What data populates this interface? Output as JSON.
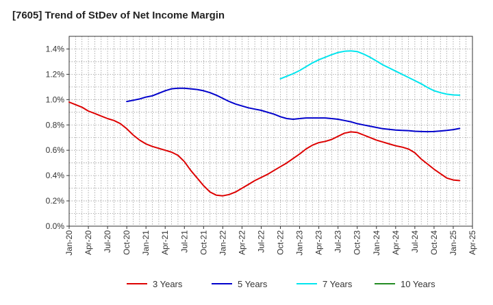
{
  "chart_data": {
    "type": "line",
    "title": "[7605]  Trend of StDev of Net Income Margin",
    "xlabel": "",
    "ylabel": "",
    "x_ticks": [
      "Jan-20",
      "Apr-20",
      "Jul-20",
      "Oct-20",
      "Jan-21",
      "Apr-21",
      "Jul-21",
      "Oct-21",
      "Jan-22",
      "Apr-22",
      "Jul-22",
      "Oct-22",
      "Jan-23",
      "Apr-23",
      "Jul-23",
      "Oct-23",
      "Jan-24",
      "Apr-24",
      "Jul-24",
      "Oct-24",
      "Jan-25",
      "Apr-25"
    ],
    "xlim": [
      "Jan-20",
      "Apr-25"
    ],
    "y_ticks": [
      "0.0%",
      "0.2%",
      "0.4%",
      "0.6%",
      "0.8%",
      "1.0%",
      "1.2%",
      "1.4%"
    ],
    "ylim": [
      0,
      1.5
    ],
    "y_unit": "%",
    "grid": true,
    "legend_position": "bottom",
    "series": [
      {
        "name": "3 Years",
        "color": "#dd0000",
        "points": [
          [
            "Jan-20",
            0.98
          ],
          [
            "Feb-20",
            0.96
          ],
          [
            "Mar-20",
            0.94
          ],
          [
            "Apr-20",
            0.91
          ],
          [
            "May-20",
            0.89
          ],
          [
            "Jun-20",
            0.87
          ],
          [
            "Jul-20",
            0.85
          ],
          [
            "Aug-20",
            0.835
          ],
          [
            "Sep-20",
            0.81
          ],
          [
            "Oct-20",
            0.77
          ],
          [
            "Nov-20",
            0.72
          ],
          [
            "Dec-20",
            0.68
          ],
          [
            "Jan-21",
            0.65
          ],
          [
            "Feb-21",
            0.63
          ],
          [
            "Mar-21",
            0.615
          ],
          [
            "Apr-21",
            0.6
          ],
          [
            "May-21",
            0.585
          ],
          [
            "Jun-21",
            0.56
          ],
          [
            "Jul-21",
            0.51
          ],
          [
            "Aug-21",
            0.44
          ],
          [
            "Sep-21",
            0.38
          ],
          [
            "Oct-21",
            0.32
          ],
          [
            "Nov-21",
            0.27
          ],
          [
            "Dec-21",
            0.245
          ],
          [
            "Jan-22",
            0.24
          ],
          [
            "Feb-22",
            0.25
          ],
          [
            "Mar-22",
            0.27
          ],
          [
            "Apr-22",
            0.3
          ],
          [
            "May-22",
            0.33
          ],
          [
            "Jun-22",
            0.36
          ],
          [
            "Jul-22",
            0.385
          ],
          [
            "Aug-22",
            0.41
          ],
          [
            "Sep-22",
            0.44
          ],
          [
            "Oct-22",
            0.47
          ],
          [
            "Nov-22",
            0.5
          ],
          [
            "Dec-22",
            0.535
          ],
          [
            "Jan-23",
            0.57
          ],
          [
            "Feb-23",
            0.61
          ],
          [
            "Mar-23",
            0.64
          ],
          [
            "Apr-23",
            0.66
          ],
          [
            "May-23",
            0.67
          ],
          [
            "Jun-23",
            0.685
          ],
          [
            "Jul-23",
            0.71
          ],
          [
            "Aug-23",
            0.735
          ],
          [
            "Sep-23",
            0.745
          ],
          [
            "Oct-23",
            0.74
          ],
          [
            "Nov-23",
            0.72
          ],
          [
            "Dec-23",
            0.7
          ],
          [
            "Jan-24",
            0.68
          ],
          [
            "Feb-24",
            0.665
          ],
          [
            "Mar-24",
            0.65
          ],
          [
            "Apr-24",
            0.635
          ],
          [
            "May-24",
            0.625
          ],
          [
            "Jun-24",
            0.61
          ],
          [
            "Jul-24",
            0.58
          ],
          [
            "Aug-24",
            0.53
          ],
          [
            "Sep-24",
            0.49
          ],
          [
            "Oct-24",
            0.45
          ],
          [
            "Nov-24",
            0.415
          ],
          [
            "Dec-24",
            0.38
          ],
          [
            "Jan-25",
            0.365
          ],
          [
            "Feb-25",
            0.36
          ]
        ]
      },
      {
        "name": "5 Years",
        "color": "#0000cc",
        "points": [
          [
            "Oct-20",
            0.985
          ],
          [
            "Nov-20",
            0.995
          ],
          [
            "Dec-20",
            1.005
          ],
          [
            "Jan-21",
            1.02
          ],
          [
            "Feb-21",
            1.03
          ],
          [
            "Mar-21",
            1.05
          ],
          [
            "Apr-21",
            1.07
          ],
          [
            "May-21",
            1.085
          ],
          [
            "Jun-21",
            1.09
          ],
          [
            "Jul-21",
            1.09
          ],
          [
            "Aug-21",
            1.085
          ],
          [
            "Sep-21",
            1.08
          ],
          [
            "Oct-21",
            1.07
          ],
          [
            "Nov-21",
            1.055
          ],
          [
            "Dec-21",
            1.035
          ],
          [
            "Jan-22",
            1.01
          ],
          [
            "Feb-22",
            0.985
          ],
          [
            "Mar-22",
            0.965
          ],
          [
            "Apr-22",
            0.95
          ],
          [
            "May-22",
            0.935
          ],
          [
            "Jun-22",
            0.925
          ],
          [
            "Jul-22",
            0.915
          ],
          [
            "Aug-22",
            0.9
          ],
          [
            "Sep-22",
            0.885
          ],
          [
            "Oct-22",
            0.865
          ],
          [
            "Nov-22",
            0.85
          ],
          [
            "Dec-22",
            0.845
          ],
          [
            "Jan-23",
            0.85
          ],
          [
            "Feb-23",
            0.855
          ],
          [
            "Mar-23",
            0.855
          ],
          [
            "Apr-23",
            0.855
          ],
          [
            "May-23",
            0.855
          ],
          [
            "Jun-23",
            0.85
          ],
          [
            "Jul-23",
            0.845
          ],
          [
            "Aug-23",
            0.835
          ],
          [
            "Sep-23",
            0.825
          ],
          [
            "Oct-23",
            0.81
          ],
          [
            "Nov-23",
            0.8
          ],
          [
            "Dec-23",
            0.79
          ],
          [
            "Jan-24",
            0.78
          ],
          [
            "Feb-24",
            0.77
          ],
          [
            "Mar-24",
            0.765
          ],
          [
            "Apr-24",
            0.76
          ],
          [
            "May-24",
            0.757
          ],
          [
            "Jun-24",
            0.755
          ],
          [
            "Jul-24",
            0.75
          ],
          [
            "Aug-24",
            0.748
          ],
          [
            "Sep-24",
            0.747
          ],
          [
            "Oct-24",
            0.748
          ],
          [
            "Nov-24",
            0.752
          ],
          [
            "Dec-24",
            0.757
          ],
          [
            "Jan-25",
            0.763
          ],
          [
            "Feb-25",
            0.772
          ]
        ]
      },
      {
        "name": "7 Years",
        "color": "#00e5ee",
        "points": [
          [
            "Oct-22",
            1.165
          ],
          [
            "Nov-22",
            1.185
          ],
          [
            "Dec-22",
            1.205
          ],
          [
            "Jan-23",
            1.23
          ],
          [
            "Feb-23",
            1.26
          ],
          [
            "Mar-23",
            1.29
          ],
          [
            "Apr-23",
            1.315
          ],
          [
            "May-23",
            1.335
          ],
          [
            "Jun-23",
            1.355
          ],
          [
            "Jul-23",
            1.372
          ],
          [
            "Aug-23",
            1.382
          ],
          [
            "Sep-23",
            1.385
          ],
          [
            "Oct-23",
            1.38
          ],
          [
            "Nov-23",
            1.36
          ],
          [
            "Dec-23",
            1.335
          ],
          [
            "Jan-24",
            1.305
          ],
          [
            "Feb-24",
            1.275
          ],
          [
            "Mar-24",
            1.25
          ],
          [
            "Apr-24",
            1.225
          ],
          [
            "May-24",
            1.2
          ],
          [
            "Jun-24",
            1.175
          ],
          [
            "Jul-24",
            1.15
          ],
          [
            "Aug-24",
            1.125
          ],
          [
            "Sep-24",
            1.095
          ],
          [
            "Oct-24",
            1.07
          ],
          [
            "Nov-24",
            1.055
          ],
          [
            "Dec-24",
            1.043
          ],
          [
            "Jan-25",
            1.037
          ],
          [
            "Feb-25",
            1.035
          ]
        ]
      },
      {
        "name": "10 Years",
        "color": "#228b22",
        "points": []
      }
    ]
  }
}
